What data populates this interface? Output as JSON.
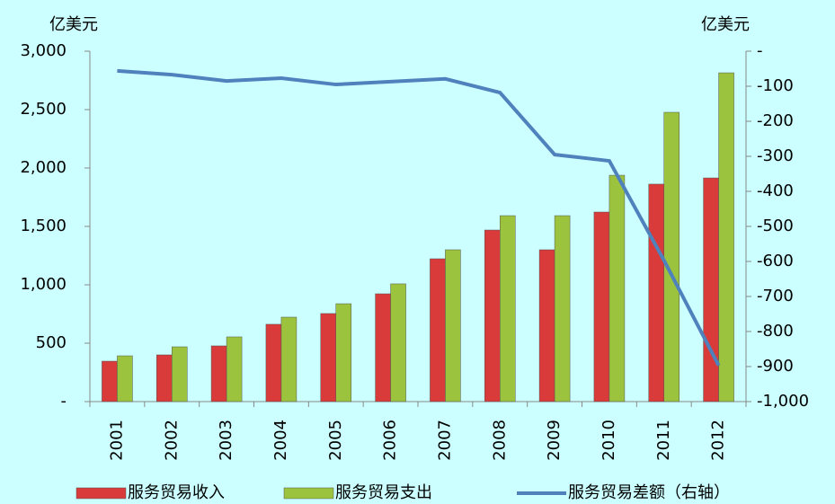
{
  "chart_data": {
    "type": "bar",
    "y_label": "亿美元",
    "y2_label": "亿美元",
    "categories": [
      "2001",
      "2002",
      "2003",
      "2004",
      "2005",
      "2006",
      "2007",
      "2008",
      "2009",
      "2010",
      "2011",
      "2012"
    ],
    "series": [
      {
        "name": "服务贸易收入",
        "type": "bar",
        "color": "#d93a3a",
        "values": [
          346,
          400,
          477,
          662,
          754,
          923,
          1223,
          1469,
          1300,
          1623,
          1862,
          1915
        ]
      },
      {
        "name": "服务贸易支出",
        "type": "bar",
        "color": "#9cc33d",
        "values": [
          392,
          469,
          554,
          723,
          838,
          1008,
          1300,
          1592,
          1592,
          1938,
          2477,
          2815
        ]
      },
      {
        "name": "服务贸易差额（右轴）",
        "type": "line",
        "axis": "y2",
        "color": "#4f81bd",
        "values": [
          -56,
          -67,
          -85,
          -77,
          -95,
          -87,
          -79,
          -118,
          -295,
          -313,
          -597,
          -897
        ]
      }
    ],
    "ylim": [
      0,
      3000
    ],
    "yticks": [
      {
        "value": 0,
        "label": "-"
      },
      500,
      {
        "value": 1000,
        "label": "1,000"
      },
      {
        "value": 1500,
        "label": "1,500"
      },
      {
        "value": 2000,
        "label": "2,000"
      },
      {
        "value": 2500,
        "label": "2,500"
      },
      {
        "value": 3000,
        "label": "3,000"
      }
    ],
    "y2lim": [
      -1000,
      0
    ],
    "y2ticks": [
      {
        "value": 0,
        "label": "-"
      },
      -100,
      -200,
      -300,
      -400,
      -500,
      -600,
      -700,
      -800,
      -900,
      {
        "value": -1000,
        "label": "-1,000"
      }
    ]
  }
}
